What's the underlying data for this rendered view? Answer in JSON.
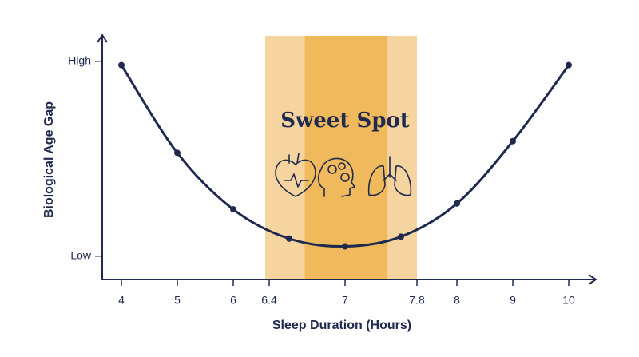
{
  "chart_data": {
    "type": "line",
    "x_label": "Sleep Duration (Hours)",
    "y_label": "Biological Age Gap",
    "x": [
      4,
      5,
      6,
      6.5,
      7,
      7.5,
      8,
      9,
      10
    ],
    "series": [
      {
        "color": "#1f2a4e",
        "values": [
          0.98,
          0.53,
          0.24,
          0.09,
          0.05,
          0.1,
          0.27,
          0.59,
          0.98
        ]
      }
    ],
    "xticks": [
      4,
      5,
      6,
      6.4,
      7,
      7.8,
      8,
      9,
      10
    ],
    "ylim": [
      -0.12,
      1.13
    ],
    "yticks": [
      {
        "value": 0,
        "label": "Low"
      },
      {
        "value": 1,
        "label": "High"
      }
    ],
    "sweet_spot": {
      "label": "Sweet Spot",
      "range": [
        6.4,
        7.8
      ],
      "core": [
        6.64,
        7.38
      ],
      "color": "#f5d4a0",
      "core_color": "#efb95c"
    }
  }
}
